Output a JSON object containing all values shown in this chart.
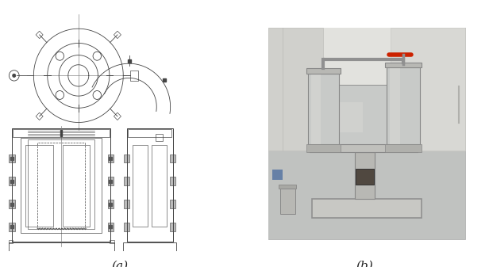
{
  "fig_width": 6.16,
  "fig_height": 3.37,
  "dpi": 100,
  "background_color": "#ffffff",
  "label_a": "(a)",
  "label_b": "(b)",
  "label_fontsize": 11,
  "lc": "#444444",
  "lw": 0.6
}
